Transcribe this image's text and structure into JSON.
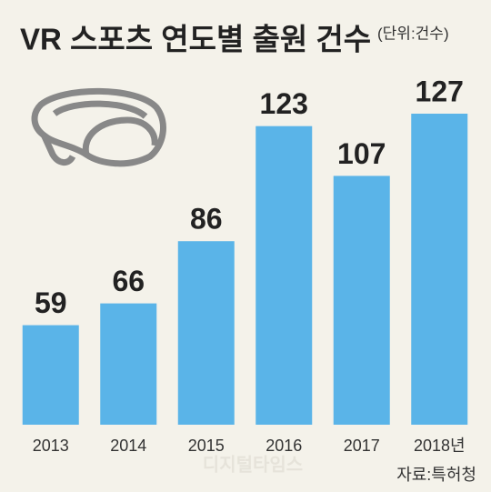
{
  "chart_data": {
    "type": "bar",
    "title": "VR 스포츠 연도별 출원 건수",
    "subtitle": "(단위:건수)",
    "categories": [
      "2013",
      "2014",
      "2015",
      "2016",
      "2017",
      "2018년"
    ],
    "values": [
      59,
      66,
      86,
      123,
      107,
      127
    ],
    "color": "#5ab4e8",
    "ylim": [
      27,
      127
    ],
    "source": "자료:특허청",
    "watermark": "디지털타임스"
  }
}
